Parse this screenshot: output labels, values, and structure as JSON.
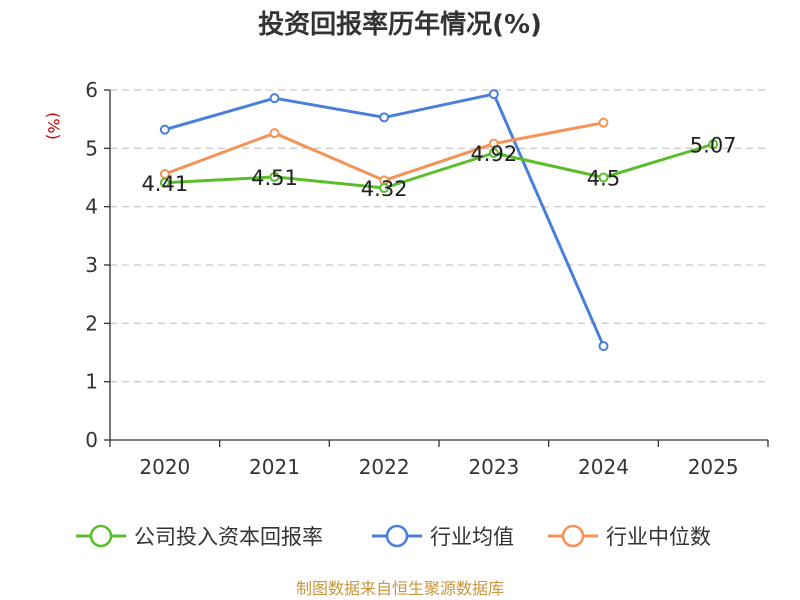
{
  "colors": {
    "company": "#5bbd2b",
    "average": "#4a7fd9",
    "median": "#f59256",
    "grid": "#cccccc",
    "axis": "#333333",
    "unit": "#cc0000",
    "source": "#c8963c"
  },
  "chart_data": {
    "type": "line",
    "title": "投资回报率历年情况(%)",
    "ylabel": "(%)",
    "xlabel": "",
    "ylim": [
      0,
      6
    ],
    "yticks": [
      "0",
      "1",
      "2",
      "3",
      "4",
      "5",
      "6"
    ],
    "categories": [
      "2020",
      "2021",
      "2022",
      "2023",
      "2024",
      "2025"
    ],
    "grid": true,
    "legend_position": "bottom",
    "series": [
      {
        "name": "公司投入资本回报率",
        "key": "company",
        "values": [
          4.41,
          4.51,
          4.32,
          4.92,
          4.5,
          5.07
        ],
        "labels": [
          "4.41",
          "4.51",
          "4.32",
          "4.92",
          "4.5",
          "5.07"
        ]
      },
      {
        "name": "行业均值",
        "key": "average",
        "values": [
          5.32,
          5.86,
          5.53,
          5.93,
          1.61,
          null
        ]
      },
      {
        "name": "行业中位数",
        "key": "median",
        "values": [
          4.56,
          5.26,
          4.45,
          5.08,
          5.44,
          null
        ]
      }
    ]
  },
  "source": "制图数据来自恒生聚源数据库"
}
